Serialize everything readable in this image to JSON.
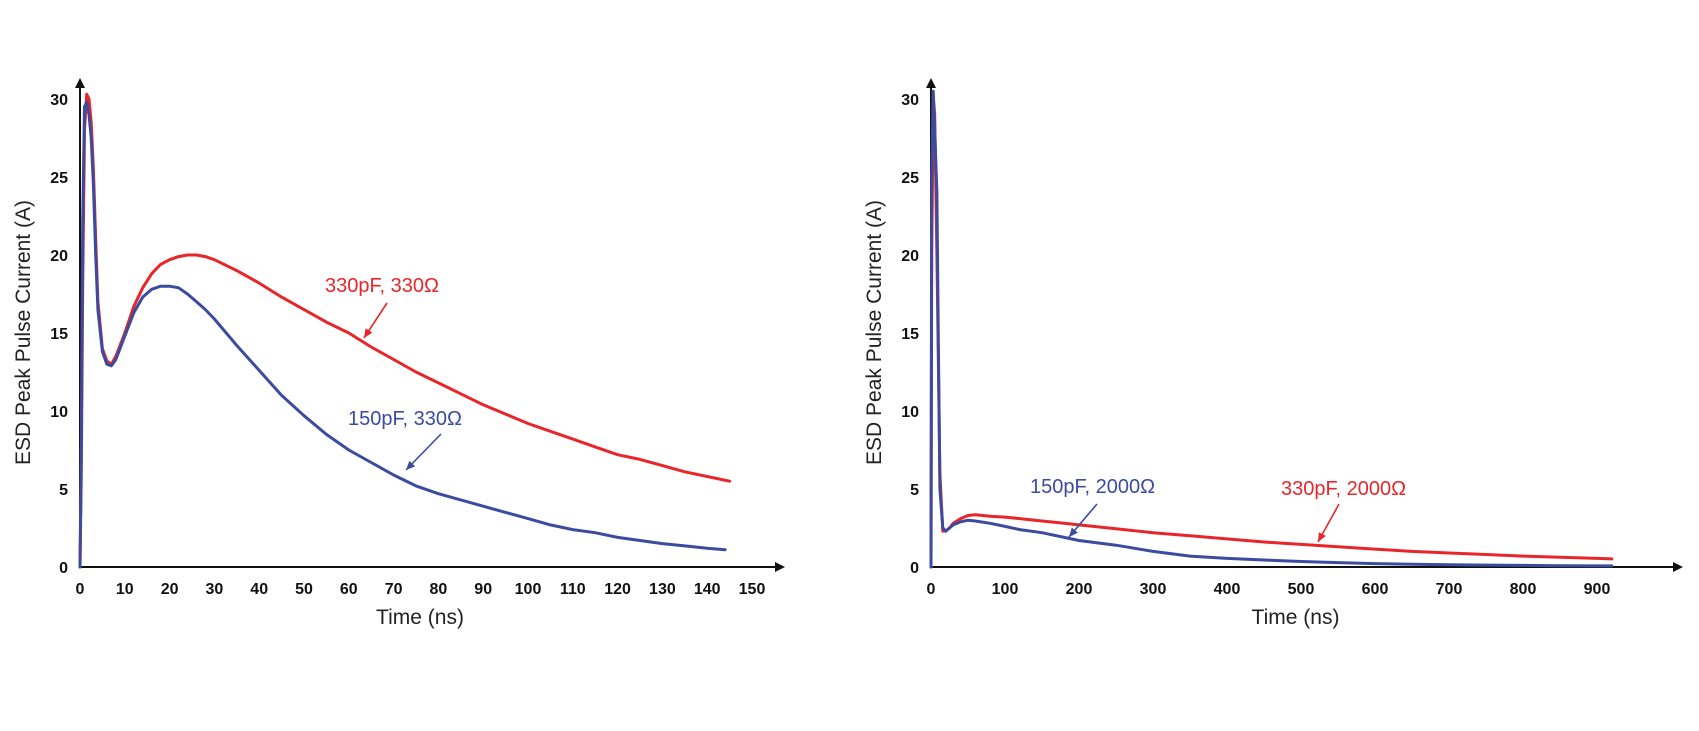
{
  "chart_data": [
    {
      "type": "line",
      "xlabel": "Time (ns)",
      "ylabel": "ESD Peak Pulse Current (A)",
      "xlim": [
        0,
        155
      ],
      "ylim": [
        0,
        31
      ],
      "xticks": [
        "0",
        "10",
        "20",
        "30",
        "40",
        "50",
        "60",
        "70",
        "80",
        "90",
        "100",
        "110",
        "120",
        "130",
        "140",
        "150"
      ],
      "yticks": [
        "0",
        "5",
        "10",
        "15",
        "20",
        "25",
        "30"
      ],
      "grid": false,
      "series": [
        {
          "name": "330pF, 330Ω",
          "color": "#e8262a",
          "x": [
            0,
            0.3,
            0.6,
            1.0,
            1.5,
            2.0,
            2.5,
            3.0,
            3.5,
            4.0,
            5.0,
            6.0,
            7.0,
            8.0,
            10,
            12,
            14,
            16,
            18,
            20,
            22,
            24,
            26,
            28,
            30,
            35,
            40,
            45,
            50,
            55,
            60,
            65,
            70,
            75,
            80,
            85,
            90,
            95,
            100,
            105,
            110,
            115,
            120,
            125,
            130,
            135,
            140,
            145
          ],
          "y": [
            0,
            6,
            18,
            28,
            30.3,
            30.0,
            28.5,
            25.5,
            21,
            17,
            14,
            13.2,
            13.0,
            13.5,
            15.0,
            16.7,
            17.9,
            18.8,
            19.4,
            19.7,
            19.9,
            20.0,
            20.0,
            19.9,
            19.7,
            19.0,
            18.2,
            17.3,
            16.5,
            15.7,
            15.0,
            14.1,
            13.3,
            12.5,
            11.8,
            11.1,
            10.4,
            9.8,
            9.2,
            8.7,
            8.2,
            7.7,
            7.2,
            6.9,
            6.5,
            6.1,
            5.8,
            5.5
          ]
        },
        {
          "name": "150pF, 330Ω",
          "color": "#3b4ba0",
          "x": [
            0,
            0.3,
            0.6,
            1.0,
            1.5,
            2.0,
            2.5,
            3.0,
            3.5,
            4.0,
            5.0,
            6.0,
            7.0,
            8.0,
            10,
            12,
            14,
            16,
            18,
            20,
            22,
            24,
            26,
            28,
            30,
            35,
            40,
            45,
            50,
            55,
            60,
            65,
            70,
            75,
            80,
            85,
            90,
            95,
            100,
            105,
            110,
            115,
            120,
            125,
            130,
            135,
            140,
            144
          ],
          "y": [
            0,
            8,
            22,
            29.5,
            29.8,
            29.0,
            27.5,
            24.5,
            20,
            16.5,
            13.8,
            13.0,
            12.9,
            13.3,
            14.8,
            16.3,
            17.3,
            17.8,
            18.0,
            18.0,
            17.9,
            17.5,
            17.0,
            16.5,
            15.9,
            14.2,
            12.6,
            11.0,
            9.7,
            8.5,
            7.5,
            6.7,
            5.9,
            5.2,
            4.7,
            4.3,
            3.9,
            3.5,
            3.1,
            2.7,
            2.4,
            2.2,
            1.9,
            1.7,
            1.5,
            1.35,
            1.2,
            1.1
          ]
        }
      ]
    },
    {
      "type": "line",
      "xlabel": "Time (ns)",
      "ylabel": "ESD Peak Pulse Current (A)",
      "xlim": [
        0,
        960
      ],
      "ylim": [
        0,
        31
      ],
      "xticks": [
        "0",
        "100",
        "200",
        "300",
        "400",
        "500",
        "600",
        "700",
        "800",
        "900"
      ],
      "yticks": [
        "0",
        "5",
        "10",
        "15",
        "20",
        "25",
        "30"
      ],
      "grid": false,
      "series": [
        {
          "name": "330pF, 2000Ω",
          "color": "#e8262a",
          "x": [
            0,
            1,
            3,
            5,
            8,
            12,
            16,
            20,
            25,
            30,
            40,
            50,
            60,
            80,
            100,
            120,
            150,
            180,
            200,
            250,
            300,
            350,
            400,
            450,
            500,
            550,
            600,
            650,
            700,
            750,
            800,
            850,
            900,
            920
          ],
          "y": [
            0,
            20,
            30.2,
            29,
            20,
            6,
            2.3,
            2.3,
            2.5,
            2.8,
            3.1,
            3.3,
            3.35,
            3.25,
            3.2,
            3.1,
            2.95,
            2.8,
            2.7,
            2.45,
            2.2,
            2.0,
            1.8,
            1.6,
            1.45,
            1.3,
            1.15,
            1.0,
            0.9,
            0.8,
            0.7,
            0.62,
            0.55,
            0.52
          ]
        },
        {
          "name": "150pF, 2000Ω",
          "color": "#3b4ba0",
          "x": [
            0,
            1,
            3,
            5,
            8,
            10,
            12,
            16,
            20,
            25,
            30,
            40,
            50,
            60,
            80,
            100,
            120,
            150,
            180,
            200,
            250,
            300,
            350,
            400,
            450,
            500,
            550,
            600,
            650,
            700,
            750,
            800,
            850,
            900,
            920
          ],
          "y": [
            0,
            25,
            30.5,
            28,
            24,
            14,
            5,
            2.5,
            2.3,
            2.5,
            2.7,
            2.9,
            3.0,
            2.95,
            2.8,
            2.6,
            2.4,
            2.2,
            1.9,
            1.7,
            1.4,
            1.0,
            0.7,
            0.55,
            0.45,
            0.35,
            0.28,
            0.22,
            0.18,
            0.15,
            0.12,
            0.1,
            0.08,
            0.07,
            0.07
          ]
        }
      ]
    }
  ]
}
